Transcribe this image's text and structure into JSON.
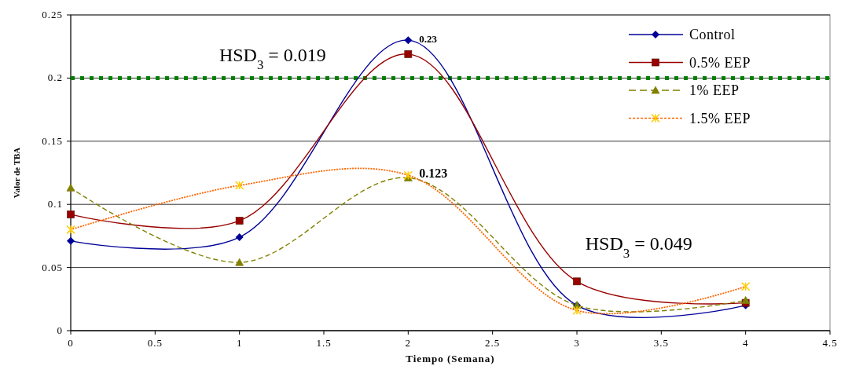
{
  "chart_data": {
    "type": "line",
    "xlabel": "Tiempo (Semana)",
    "ylabel": "Valor de TBA",
    "xlim": [
      0,
      4.5
    ],
    "xticks": [
      0,
      0.5,
      1,
      1.5,
      2,
      2.5,
      3,
      3.5,
      4,
      4.5
    ],
    "ylim": [
      0,
      0.25
    ],
    "yticks": [
      0,
      0.05,
      0.1,
      0.15,
      0.2,
      0.25
    ],
    "grid": "y",
    "legend": "top right",
    "x": [
      0,
      1,
      2,
      3,
      4
    ],
    "series": [
      {
        "name": "Control",
        "color": "#000099",
        "marker": "diamond",
        "line_style": "solid",
        "values": [
          0.071,
          0.074,
          0.23,
          0.02,
          0.02
        ],
        "value_labels": [
          null,
          null,
          "0.23",
          null,
          null
        ]
      },
      {
        "name": "0.5% EEP",
        "color": "#990000",
        "marker": "square",
        "line_style": "solid",
        "values": [
          0.092,
          0.087,
          0.219,
          0.039,
          0.022
        ]
      },
      {
        "name": "1% EEP",
        "color": "#808000",
        "marker": "triangle",
        "line_style": "dashed",
        "values": [
          0.113,
          0.054,
          0.121,
          0.02,
          0.024
        ]
      },
      {
        "name": "1.5% EEP",
        "color": "#ff6600",
        "marker": "cross",
        "line_style": "dotted",
        "values": [
          0.08,
          0.115,
          0.123,
          0.016,
          0.035
        ],
        "value_labels": [
          null,
          null,
          "0.123",
          null,
          null
        ]
      }
    ],
    "ref_lines": [
      {
        "axis": "y",
        "value": 0.2,
        "color": "#008000",
        "line_style": "dotted"
      }
    ],
    "annotations": [
      "HSD$_{3}$ = 0.019",
      "HSD$_{3}$ = 0.049"
    ]
  }
}
